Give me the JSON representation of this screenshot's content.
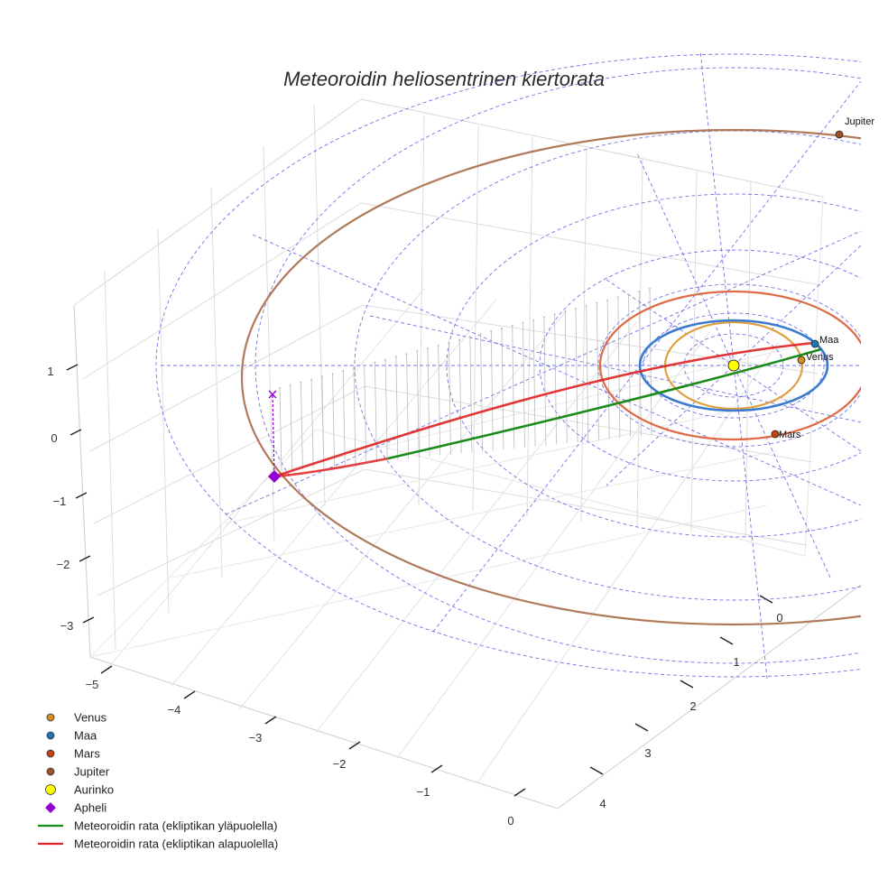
{
  "chart_data": {
    "type": "scatter3d",
    "title": "Meteoroidin heliosentrinen kiertorata",
    "xlabel": "",
    "ylabel": "",
    "zlabel": "",
    "axes": {
      "x": {
        "ticks": [
          0,
          1,
          2,
          3,
          4
        ]
      },
      "y": {
        "ticks": [
          -5,
          -4,
          -3,
          -2,
          -1,
          0
        ]
      },
      "z": {
        "ticks": [
          1,
          0,
          -1,
          -2,
          -3
        ]
      }
    },
    "grid": true,
    "legend_position": "bottom-left",
    "series": [
      {
        "name": "Venus",
        "type": "point",
        "color": "#d68a1f",
        "label": "Venus",
        "orbit_color": "#e0a040"
      },
      {
        "name": "Maa",
        "type": "point",
        "color": "#1f77b4",
        "label": "Maa",
        "orbit_color": "#3a7ad0"
      },
      {
        "name": "Mars",
        "type": "point",
        "color": "#c1440e",
        "label": "Mars",
        "orbit_color": "#de6b45"
      },
      {
        "name": "Jupiter",
        "type": "point",
        "color": "#a0522d",
        "label": "Jupiter",
        "orbit_color": "#b07a5a"
      },
      {
        "name": "Aurinko",
        "type": "point",
        "color": "#ffff00"
      },
      {
        "name": "Apheli",
        "type": "point",
        "color": "#9400d3"
      },
      {
        "name": "Meteoroidin rata (ekliptikan yläpuolella)",
        "type": "line",
        "color": "#1a8a1a"
      },
      {
        "name": "Meteoroidin rata (ekliptikan alapuolella)",
        "type": "line",
        "color": "#e02020"
      }
    ]
  }
}
